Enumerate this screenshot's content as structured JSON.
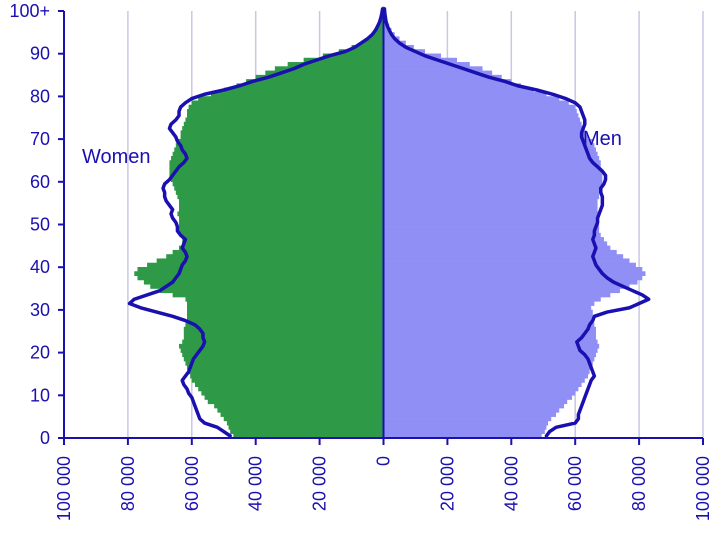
{
  "chart_data": {
    "type": "bar",
    "orientation": "horizontal",
    "layout": "population-pyramid",
    "title": "",
    "xlabel": "",
    "ylabel": "",
    "grid": true,
    "legend": "none",
    "xlim": [
      -100000,
      100000
    ],
    "ylim": [
      0,
      100
    ],
    "x_ticks": [
      -100000,
      -80000,
      -60000,
      -40000,
      -20000,
      0,
      20000,
      40000,
      60000,
      80000,
      100000
    ],
    "x_tick_labels": [
      "100 000",
      "80 000",
      "60 000",
      "40 000",
      "20 000",
      "0",
      "20 000",
      "40 000",
      "60 000",
      "80 000",
      "100 000"
    ],
    "y_ticks": [
      0,
      10,
      20,
      30,
      40,
      50,
      60,
      70,
      80,
      90,
      100
    ],
    "y_tick_labels": [
      "0",
      "10",
      "20",
      "30",
      "40",
      "50",
      "60",
      "70",
      "80",
      "90",
      "100+"
    ],
    "side_labels": {
      "women": "Women",
      "men": "Men"
    },
    "colors": {
      "women_bars": "#2e9a47",
      "men_bars": "#8f8ff5",
      "outline": "#1a10b0",
      "axis_text": "#1a10b0",
      "grid": "#c8c8e6"
    },
    "ages": [
      0,
      1,
      2,
      3,
      4,
      5,
      6,
      7,
      8,
      9,
      10,
      11,
      12,
      13,
      14,
      15,
      16,
      17,
      18,
      19,
      20,
      21,
      22,
      23,
      24,
      25,
      26,
      27,
      28,
      29,
      30,
      31,
      32,
      33,
      34,
      35,
      36,
      37,
      38,
      39,
      40,
      41,
      42,
      43,
      44,
      45,
      46,
      47,
      48,
      49,
      50,
      51,
      52,
      53,
      54,
      55,
      56,
      57,
      58,
      59,
      60,
      61,
      62,
      63,
      64,
      65,
      66,
      67,
      68,
      69,
      70,
      71,
      72,
      73,
      74,
      75,
      76,
      77,
      78,
      79,
      80,
      81,
      82,
      83,
      84,
      85,
      86,
      87,
      88,
      89,
      90,
      91,
      92,
      93,
      94,
      95,
      96,
      97,
      98,
      99,
      100
    ],
    "series": [
      {
        "side": "women",
        "type": "bars",
        "values": [
          47000,
          48000,
          48500,
          49000,
          50000,
          51000,
          52000,
          53000,
          55000,
          56000,
          57000,
          58000,
          59000,
          60000,
          60500,
          61000,
          61500,
          62000,
          62500,
          63000,
          63500,
          64000,
          63000,
          62500,
          62500,
          62500,
          62000,
          61500,
          61500,
          61500,
          61500,
          61500,
          62000,
          66000,
          70000,
          73000,
          75000,
          77000,
          78000,
          77000,
          74000,
          71000,
          68000,
          66000,
          64000,
          63000,
          63000,
          63500,
          64000,
          64000,
          64000,
          64000,
          64500,
          64000,
          64000,
          64000,
          64500,
          65000,
          65500,
          66000,
          66500,
          67000,
          67000,
          67000,
          67000,
          66500,
          66000,
          65500,
          65000,
          64500,
          63500,
          63500,
          63000,
          62500,
          62000,
          61500,
          61500,
          61000,
          60000,
          58000,
          54000,
          50000,
          46000,
          43000,
          40000,
          37000,
          34000,
          30000,
          25000,
          19000,
          14000,
          10000,
          7000,
          5000,
          3500,
          2500,
          1800,
          1200,
          800,
          500,
          300
        ]
      },
      {
        "side": "women",
        "type": "outline",
        "values": [
          48000,
          50000,
          52000,
          56000,
          57500,
          58000,
          58500,
          59000,
          59500,
          60000,
          61000,
          61500,
          62500,
          63000,
          62000,
          61000,
          60500,
          60000,
          59500,
          58500,
          57500,
          56500,
          56000,
          56500,
          56500,
          57500,
          59000,
          62000,
          66000,
          71000,
          76000,
          79500,
          78000,
          74000,
          70000,
          68000,
          66000,
          65000,
          64000,
          63500,
          63000,
          62000,
          61500,
          62000,
          63000,
          62500,
          62000,
          63500,
          64500,
          64500,
          65000,
          66000,
          66500,
          66000,
          67000,
          68000,
          68500,
          68500,
          69000,
          68500,
          67000,
          66000,
          65000,
          64000,
          62500,
          61500,
          62000,
          63000,
          63500,
          64500,
          65000,
          66000,
          67000,
          66500,
          65000,
          64000,
          64000,
          63500,
          62000,
          60000,
          56000,
          50000,
          45000,
          41000,
          36000,
          32000,
          28000,
          25000,
          21000,
          17000,
          12000,
          9000,
          7000,
          5000,
          3500,
          2500,
          1800,
          1200,
          800,
          500,
          300
        ]
      },
      {
        "side": "men",
        "type": "bars",
        "values": [
          49500,
          50500,
          51000,
          51500,
          52500,
          54000,
          55000,
          56500,
          57500,
          59000,
          60000,
          61000,
          62000,
          63000,
          64000,
          64500,
          65000,
          65500,
          66000,
          66500,
          67000,
          67500,
          67000,
          66500,
          66500,
          66500,
          66000,
          65500,
          65500,
          65500,
          65000,
          66000,
          68000,
          71000,
          74000,
          77000,
          79500,
          81000,
          82000,
          81000,
          79000,
          77000,
          75000,
          73000,
          71000,
          70000,
          69000,
          68000,
          67500,
          67500,
          67500,
          67500,
          67500,
          67000,
          67000,
          67000,
          67500,
          67500,
          68000,
          68500,
          68500,
          68500,
          68500,
          68000,
          68000,
          67500,
          67000,
          66500,
          66000,
          65500,
          64000,
          63500,
          63000,
          62000,
          61500,
          61000,
          60500,
          60000,
          58000,
          55000,
          51000,
          47000,
          43000,
          40000,
          37000,
          34000,
          31000,
          27000,
          23000,
          18000,
          13000,
          9500,
          7000,
          5000,
          3500,
          2500,
          1800,
          1200,
          800,
          500,
          300
        ]
      },
      {
        "side": "men",
        "type": "outline",
        "values": [
          51000,
          52000,
          54000,
          60000,
          61000,
          61000,
          61500,
          62000,
          62500,
          63000,
          63500,
          64000,
          64500,
          65000,
          66000,
          65500,
          65000,
          64500,
          64000,
          63000,
          61500,
          61000,
          60500,
          62000,
          63000,
          64000,
          64500,
          65500,
          66000,
          70000,
          77000,
          80000,
          83000,
          81000,
          78000,
          75000,
          72000,
          70000,
          68500,
          67500,
          66500,
          66000,
          65500,
          66000,
          66500,
          66000,
          65500,
          66000,
          66000,
          66500,
          67000,
          67000,
          67500,
          68000,
          68500,
          68500,
          68500,
          68000,
          68000,
          69000,
          69500,
          69500,
          68500,
          67000,
          65500,
          64500,
          64000,
          63500,
          63000,
          62500,
          62000,
          62000,
          62500,
          63000,
          63000,
          62500,
          62000,
          61500,
          60000,
          57000,
          53000,
          48000,
          42000,
          38000,
          33000,
          29000,
          25000,
          21000,
          17000,
          13000,
          10000,
          7000,
          5000,
          3500,
          2500,
          1800,
          1200,
          800,
          600,
          400,
          300
        ]
      }
    ]
  }
}
